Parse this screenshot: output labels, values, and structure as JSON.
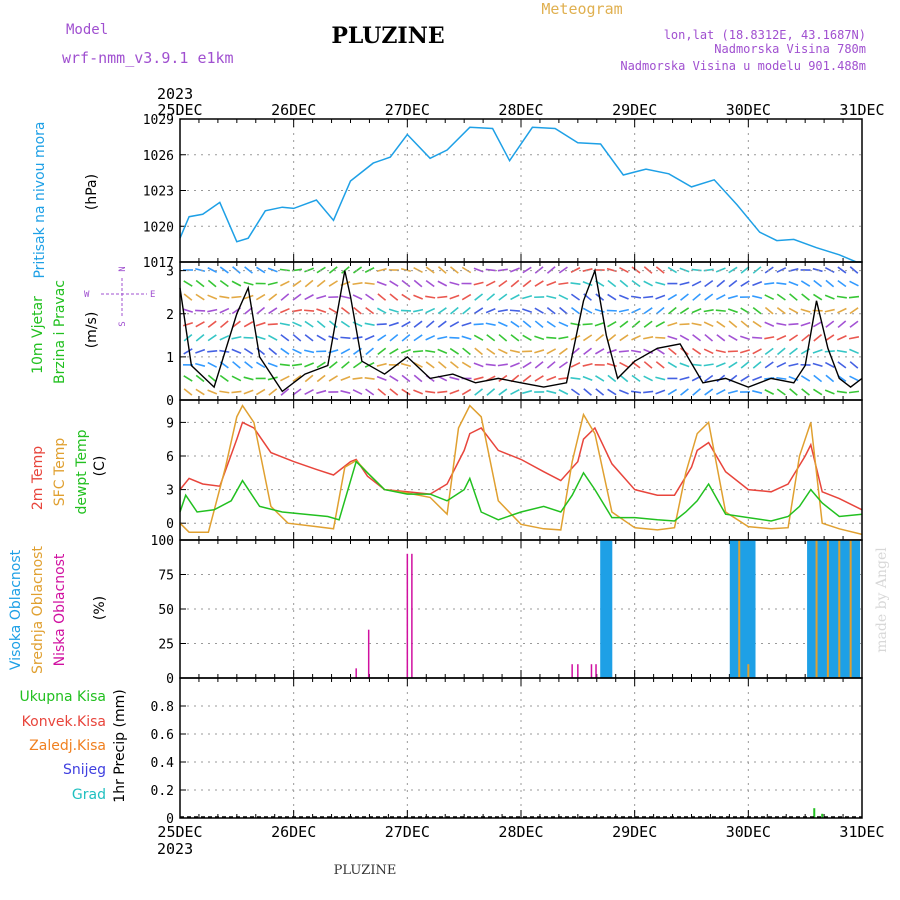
{
  "header": {
    "model_label": "Model",
    "model_name": "wrf-nmm_v3.9.1 e1km",
    "station": "PLUZINE",
    "meteogram": "Meteogram",
    "lonlat": "lon,lat (18.8312E, 43.1687N)",
    "altitude": "Nadmorska Visina 780m",
    "model_altitude": "Nadmorska Visina u modelu 901.488m",
    "footer": "PLUZINE",
    "credit": "made by Angel"
  },
  "colors": {
    "pressure": "#1ea0e6",
    "temp2m": "#e8453c",
    "sfc": "#e0a030",
    "dewpt": "#22c020",
    "wind_label": "#22c020",
    "wind_dir": "#9a40d0",
    "cloud_high": "#1ea0e6",
    "cloud_mid": "#e0a030",
    "cloud_low": "#d010a0",
    "rain_total": "#22c020",
    "rain_conv": "#e8453c",
    "freezing": "#f08020",
    "snow": "#4040e0",
    "hail": "#20c0c0"
  },
  "chart_data": {
    "type": "line",
    "x_axis": {
      "year": "2023",
      "ticks": [
        "25DEC",
        "26DEC",
        "27DEC",
        "28DEC",
        "29DEC",
        "30DEC",
        "31DEC"
      ],
      "units": "days since 25DEC",
      "range": [
        0,
        6
      ]
    },
    "panels": [
      {
        "id": "pressure",
        "labels": [
          "Pritisak na nivou mora"
        ],
        "unit": "(hPa)",
        "ylim": [
          1017,
          1029
        ],
        "yticks": [
          "1017",
          "1020",
          "1023",
          "1026",
          "1029"
        ],
        "series": [
          {
            "name": "Pritisak na nivou mora",
            "x": [
              0,
              0.08,
              0.2,
              0.35,
              0.5,
              0.6,
              0.75,
              0.9,
              1.0,
              1.2,
              1.35,
              1.5,
              1.7,
              1.85,
              2.0,
              2.2,
              2.35,
              2.55,
              2.75,
              2.9,
              3.1,
              3.3,
              3.5,
              3.7,
              3.9,
              4.1,
              4.3,
              4.5,
              4.7,
              4.9,
              5.1,
              5.25,
              5.4,
              5.6,
              5.8,
              5.95,
              6.0
            ],
            "y": [
              1019.0,
              1020.8,
              1021.0,
              1022.0,
              1018.7,
              1019.0,
              1021.3,
              1021.6,
              1021.5,
              1022.2,
              1020.5,
              1023.8,
              1025.3,
              1025.8,
              1027.7,
              1025.7,
              1026.4,
              1028.3,
              1028.2,
              1025.5,
              1028.3,
              1028.2,
              1027.0,
              1026.9,
              1024.3,
              1024.8,
              1024.4,
              1023.3,
              1023.9,
              1021.8,
              1019.5,
              1018.8,
              1018.9,
              1018.2,
              1017.6,
              1017.0,
              1017.0
            ]
          }
        ]
      },
      {
        "id": "wind",
        "labels": [
          "10m Vjetar",
          "Brzina i Pravac"
        ],
        "unit": "(m/s)",
        "compass": [
          "N",
          "W",
          "E",
          "S"
        ],
        "ylim": [
          0,
          3.2
        ],
        "yticks": [
          "0",
          "1",
          "2",
          "3"
        ],
        "series": [
          {
            "name": "wind_speed",
            "x": [
              0,
              0.1,
              0.3,
              0.5,
              0.6,
              0.7,
              0.9,
              1.1,
              1.3,
              1.45,
              1.5,
              1.6,
              1.8,
              2.0,
              2.2,
              2.4,
              2.6,
              2.8,
              3.0,
              3.2,
              3.4,
              3.55,
              3.65,
              3.75,
              3.85,
              4.0,
              4.2,
              4.4,
              4.6,
              4.8,
              5.0,
              5.2,
              5.4,
              5.5,
              5.6,
              5.7,
              5.8,
              5.9,
              6.0
            ],
            "y": [
              2.6,
              0.8,
              0.3,
              2.0,
              2.6,
              1.0,
              0.2,
              0.6,
              0.8,
              3.0,
              2.4,
              0.9,
              0.6,
              1.0,
              0.5,
              0.6,
              0.4,
              0.5,
              0.4,
              0.3,
              0.4,
              2.3,
              3.0,
              1.5,
              0.5,
              0.9,
              1.2,
              1.3,
              0.4,
              0.5,
              0.3,
              0.5,
              0.4,
              0.8,
              2.3,
              1.2,
              0.5,
              0.3,
              0.5
            ]
          }
        ]
      },
      {
        "id": "temperature",
        "labels": [
          "2m Temp",
          "SFC Temp",
          "dewpt Temp"
        ],
        "unit": "(C)",
        "ylim": [
          -1.5,
          11
        ],
        "yticks": [
          "0",
          "3",
          "6",
          "9"
        ],
        "series": [
          {
            "name": "2m Temp",
            "x": [
              0,
              0.08,
              0.2,
              0.35,
              0.5,
              0.55,
              0.65,
              0.8,
              1.0,
              1.2,
              1.35,
              1.5,
              1.55,
              1.65,
              1.8,
              2.0,
              2.2,
              2.35,
              2.5,
              2.55,
              2.65,
              2.8,
              3.0,
              3.2,
              3.35,
              3.5,
              3.55,
              3.65,
              3.8,
              4.0,
              4.2,
              4.35,
              4.5,
              4.55,
              4.65,
              4.8,
              5.0,
              5.2,
              5.35,
              5.5,
              5.55,
              5.65,
              5.8,
              6.0
            ],
            "y": [
              3.0,
              4.0,
              3.5,
              3.3,
              7.5,
              9.0,
              8.5,
              6.3,
              5.5,
              4.8,
              4.3,
              5.5,
              5.7,
              4.2,
              3.0,
              2.8,
              2.6,
              3.5,
              6.5,
              8.0,
              8.5,
              6.5,
              5.7,
              4.6,
              3.8,
              5.5,
              7.5,
              8.5,
              5.3,
              3.0,
              2.5,
              2.5,
              5.0,
              6.5,
              7.2,
              4.6,
              3.0,
              2.8,
              3.5,
              6.0,
              7.0,
              2.8,
              2.2,
              1.2
            ]
          },
          {
            "name": "SFC Temp",
            "x": [
              0,
              0.08,
              0.25,
              0.4,
              0.5,
              0.55,
              0.65,
              0.8,
              0.95,
              1.2,
              1.35,
              1.45,
              1.55,
              1.65,
              1.8,
              2.0,
              2.2,
              2.35,
              2.45,
              2.55,
              2.65,
              2.8,
              3.0,
              3.2,
              3.35,
              3.45,
              3.55,
              3.65,
              3.8,
              4.0,
              4.2,
              4.35,
              4.45,
              4.55,
              4.65,
              4.8,
              5.0,
              5.2,
              5.35,
              5.45,
              5.55,
              5.65,
              5.8,
              6.0
            ],
            "y": [
              0.0,
              -0.8,
              -0.8,
              5.0,
              9.5,
              10.5,
              9.0,
              1.5,
              0.0,
              -0.3,
              -0.5,
              5.0,
              5.6,
              4.5,
              3.0,
              2.7,
              2.3,
              0.8,
              8.5,
              10.5,
              9.5,
              2.0,
              -0.1,
              -0.5,
              -0.6,
              5.5,
              9.7,
              8.0,
              1.0,
              -0.4,
              -0.6,
              -0.4,
              4.5,
              8.0,
              9.0,
              1.0,
              -0.3,
              -0.5,
              -0.4,
              6.0,
              9.0,
              0.0,
              -0.5,
              -1.0
            ]
          },
          {
            "name": "dewpt Temp",
            "x": [
              0,
              0.05,
              0.15,
              0.3,
              0.45,
              0.55,
              0.7,
              0.9,
              1.1,
              1.3,
              1.4,
              1.55,
              1.65,
              1.8,
              2.0,
              2.2,
              2.35,
              2.5,
              2.55,
              2.65,
              2.8,
              3.0,
              3.2,
              3.35,
              3.45,
              3.55,
              3.65,
              3.8,
              4.0,
              4.2,
              4.35,
              4.45,
              4.55,
              4.65,
              4.8,
              5.0,
              5.2,
              5.35,
              5.45,
              5.55,
              5.65,
              5.8,
              6.0
            ],
            "y": [
              1.0,
              2.5,
              1.0,
              1.2,
              2.0,
              3.8,
              1.5,
              1.0,
              0.8,
              0.6,
              0.3,
              5.5,
              4.5,
              3.0,
              2.6,
              2.6,
              2.0,
              3.0,
              4.0,
              1.0,
              0.3,
              1.0,
              1.5,
              1.0,
              2.5,
              4.5,
              3.0,
              0.5,
              0.5,
              0.3,
              0.2,
              1.0,
              2.0,
              3.5,
              0.8,
              0.5,
              0.2,
              0.6,
              1.5,
              3.0,
              1.8,
              0.6,
              0.8
            ]
          }
        ]
      },
      {
        "id": "clouds",
        "labels": [
          "Visoka Oblacnost",
          "Srednja Oblacnost",
          "Niska Oblacnost"
        ],
        "unit": "(%)",
        "ylim": [
          0,
          100
        ],
        "yticks": [
          "0",
          "25",
          "50",
          "75",
          "100"
        ],
        "type": "bar",
        "series": [
          {
            "name": "Visoka Oblacnost",
            "x": [
              3.71,
              3.73,
              3.75,
              3.77,
              3.79,
              4.85,
              4.87,
              4.89,
              4.91,
              4.93,
              4.95,
              4.97,
              4.99,
              5.01,
              5.03,
              5.05,
              5.53,
              5.55,
              5.57,
              5.59,
              5.61,
              5.63,
              5.65,
              5.67,
              5.69,
              5.71,
              5.73,
              5.75,
              5.77,
              5.79,
              5.81,
              5.83,
              5.85,
              5.87,
              5.89,
              5.91,
              5.93,
              5.95,
              5.97
            ],
            "y": [
              100,
              100,
              100,
              100,
              100,
              100,
              100,
              100,
              100,
              100,
              100,
              100,
              100,
              100,
              100,
              100,
              100,
              100,
              100,
              100,
              100,
              100,
              100,
              100,
              100,
              100,
              100,
              100,
              100,
              100,
              100,
              100,
              100,
              100,
              100,
              100,
              100,
              100,
              100
            ]
          },
          {
            "name": "Srednja Oblacnost",
            "x": [
              4.92,
              5.0,
              5.6,
              5.7,
              5.8,
              5.9
            ],
            "y": [
              100,
              10,
              100,
              100,
              100,
              100
            ]
          },
          {
            "name": "Niska Oblacnost",
            "x": [
              1.55,
              1.66,
              2.0,
              2.04,
              3.45,
              3.5,
              3.62,
              3.66
            ],
            "y": [
              7,
              35,
              90,
              90,
              10,
              10,
              10,
              10
            ]
          }
        ]
      },
      {
        "id": "precip",
        "labels": [
          "Ukupna Kisa",
          "Konvek.Kisa",
          "Zaledj.Kisa",
          "Snijeg",
          "Grad"
        ],
        "unit": "1hr Precip (mm)",
        "ylim": [
          0,
          1.0
        ],
        "yticks": [
          "0",
          "0.2",
          "0.4",
          "0.6",
          "0.8"
        ],
        "type": "bar",
        "series": [
          {
            "name": "Ukupna Kisa",
            "x": [
              5.58,
              5.65
            ],
            "y": [
              0.07,
              0.03
            ]
          }
        ]
      }
    ]
  }
}
